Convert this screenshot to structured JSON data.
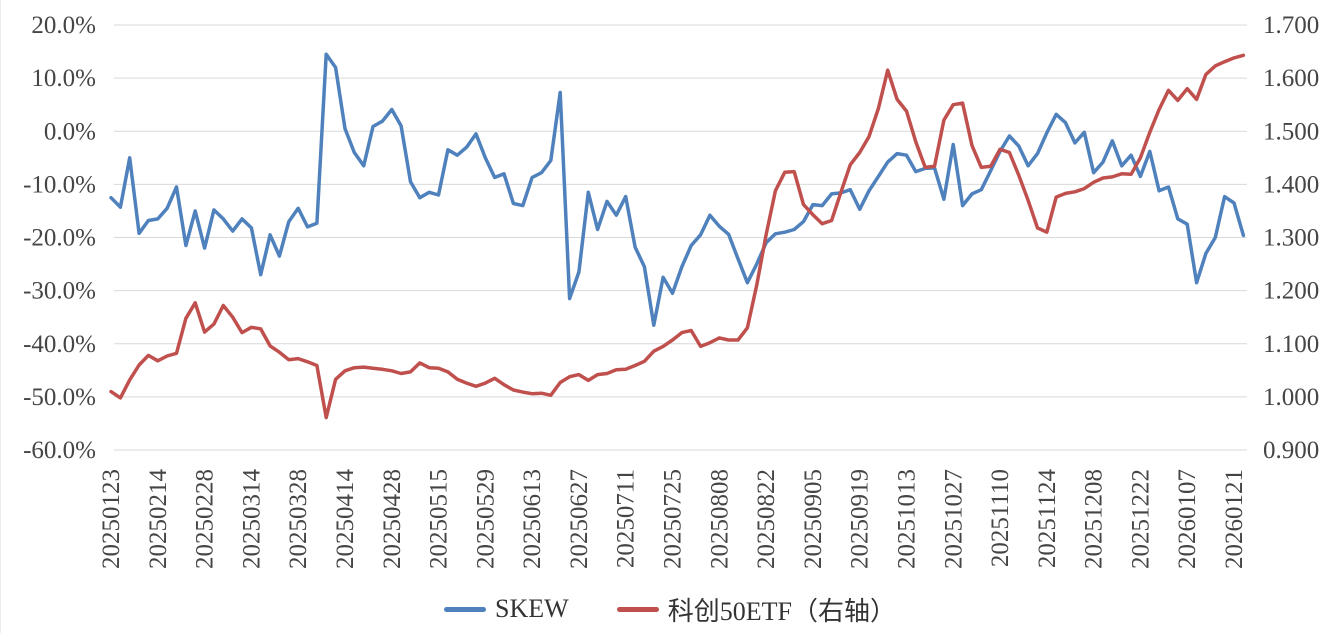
{
  "chart_data": {
    "type": "line",
    "title": "",
    "grid": true,
    "background": "#ffffff",
    "gridline_color": "#d9d9d9",
    "legend_position": "bottom",
    "left_axis": {
      "min": -60,
      "max": 20,
      "tick_labels": [
        "20.0%",
        "10.0%",
        "0.0%",
        "-10.0%",
        "-20.0%",
        "-30.0%",
        "-40.0%",
        "-50.0%",
        "-60.0%"
      ]
    },
    "right_axis": {
      "min": 0.9,
      "max": 1.7,
      "tick_labels": [
        "1.700",
        "1.600",
        "1.500",
        "1.400",
        "1.300",
        "1.200",
        "1.100",
        "1.000",
        "0.900"
      ]
    },
    "x_tick_labels": [
      "20250123",
      "20250214",
      "20250228",
      "20250314",
      "20250328",
      "20250414",
      "20250428",
      "20250515",
      "20250529",
      "20250613",
      "20250627",
      "20250711",
      "20250725",
      "20250808",
      "20250822",
      "20250905",
      "20250919",
      "20251013",
      "20251027",
      "20251110",
      "20251124",
      "20251208",
      "20251222",
      "20260107",
      "20260121"
    ],
    "points_per_tick": 5,
    "series": [
      {
        "name": "SKEW",
        "axis": "left",
        "color": "#4F81BD",
        "unit": "%",
        "values": [
          -12.5,
          -14.3,
          -5.0,
          -19.2,
          -16.8,
          -16.5,
          -14.5,
          -10.5,
          -21.5,
          -15.0,
          -22.0,
          -14.8,
          -16.5,
          -18.8,
          -16.5,
          -18.2,
          -27.0,
          -19.5,
          -23.5,
          -17.0,
          -14.5,
          -18.0,
          -17.3,
          14.5,
          12.0,
          0.5,
          -4.0,
          -6.5,
          0.9,
          1.9,
          4.1,
          1.0,
          -9.5,
          -12.5,
          -11.5,
          -12.0,
          -3.5,
          -4.5,
          -3.0,
          -0.5,
          -5.0,
          -8.7,
          -8.0,
          -13.6,
          -14.0,
          -8.7,
          -7.8,
          -5.5,
          7.3,
          -31.5,
          -26.5,
          -11.5,
          -18.5,
          -13.2,
          -15.8,
          -12.3,
          -21.8,
          -25.5,
          -36.5,
          -27.5,
          -30.5,
          -25.5,
          -21.5,
          -19.5,
          -15.8,
          -17.9,
          -19.4,
          -24.0,
          -28.5,
          -25.0,
          -21.0,
          -19.3,
          -19.0,
          -18.5,
          -17.0,
          -13.8,
          -14.0,
          -11.8,
          -11.6,
          -11.0,
          -14.7,
          -11.2,
          -8.5,
          -5.8,
          -4.2,
          -4.5,
          -7.6,
          -7.0,
          -6.9,
          -12.8,
          -2.5,
          -14.0,
          -11.8,
          -11.0,
          -7.4,
          -3.8,
          -0.9,
          -2.8,
          -6.5,
          -4.2,
          -0.3,
          3.2,
          1.6,
          -2.2,
          -0.2,
          -7.8,
          -5.8,
          -1.8,
          -6.5,
          -4.5,
          -8.5,
          -3.8,
          -11.2,
          -10.5,
          -16.5,
          -17.5,
          -28.5,
          -23.0,
          -20.0,
          -12.3,
          -13.5,
          -19.6
        ]
      },
      {
        "name": "科创50ETF（右轴）",
        "axis": "right",
        "color": "#C0504D",
        "unit": "",
        "values": [
          1.01,
          0.998,
          1.032,
          1.06,
          1.078,
          1.068,
          1.077,
          1.082,
          1.148,
          1.177,
          1.122,
          1.137,
          1.172,
          1.15,
          1.121,
          1.131,
          1.128,
          1.096,
          1.084,
          1.07,
          1.072,
          1.066,
          1.059,
          0.961,
          1.033,
          1.049,
          1.055,
          1.056,
          1.054,
          1.052,
          1.049,
          1.044,
          1.047,
          1.064,
          1.055,
          1.054,
          1.047,
          1.033,
          1.026,
          1.02,
          1.026,
          1.035,
          1.023,
          1.013,
          1.009,
          1.006,
          1.007,
          1.003,
          1.027,
          1.038,
          1.042,
          1.031,
          1.042,
          1.044,
          1.051,
          1.052,
          1.059,
          1.067,
          1.086,
          1.095,
          1.107,
          1.121,
          1.125,
          1.095,
          1.102,
          1.111,
          1.107,
          1.107,
          1.13,
          1.21,
          1.305,
          1.388,
          1.423,
          1.424,
          1.362,
          1.343,
          1.326,
          1.332,
          1.385,
          1.437,
          1.46,
          1.49,
          1.543,
          1.615,
          1.56,
          1.538,
          1.48,
          1.432,
          1.434,
          1.521,
          1.55,
          1.553,
          1.473,
          1.432,
          1.434,
          1.466,
          1.46,
          1.417,
          1.37,
          1.318,
          1.31,
          1.376,
          1.383,
          1.386,
          1.392,
          1.404,
          1.412,
          1.414,
          1.42,
          1.419,
          1.45,
          1.498,
          1.541,
          1.577,
          1.558,
          1.58,
          1.56,
          1.607,
          1.623,
          1.631,
          1.638,
          1.643
        ]
      }
    ]
  },
  "legend": {
    "items": [
      {
        "label": "SKEW"
      },
      {
        "label": "科创50ETF（右轴）"
      }
    ]
  }
}
